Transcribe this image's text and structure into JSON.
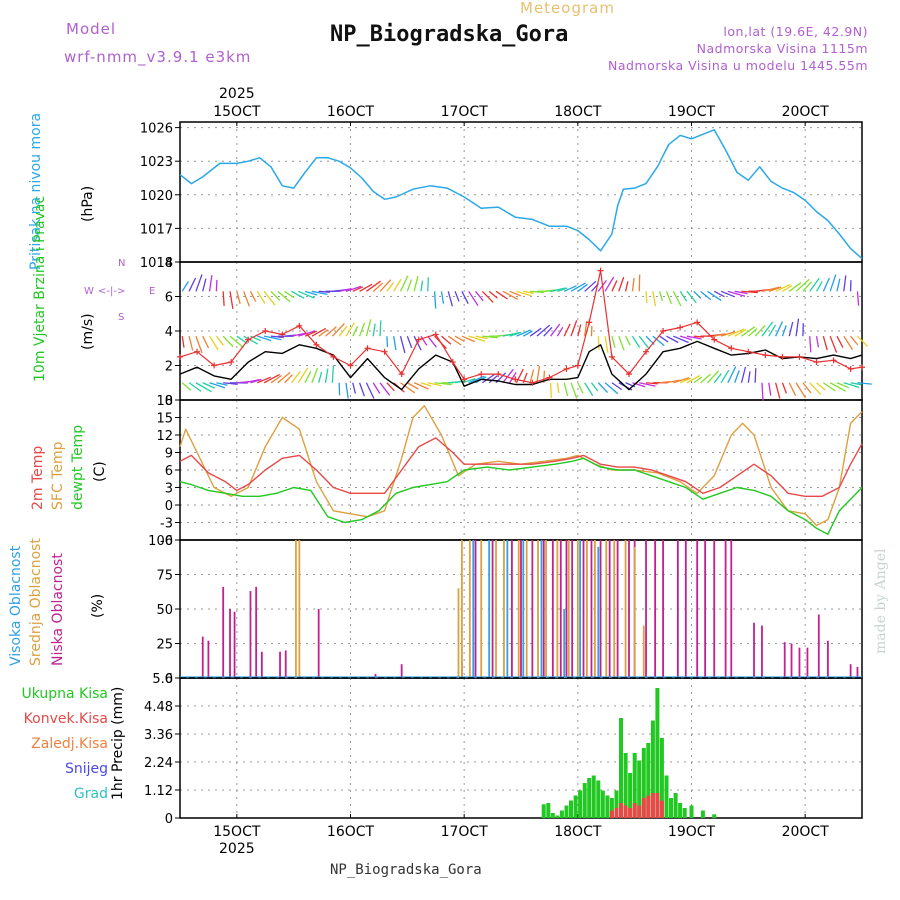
{
  "header": {
    "model_label": "Model",
    "model_name": "wrf-nmm_v3.9.1 e3km",
    "meteogram_label": "Meteogram",
    "station_title": "NP_Biogradska_Gora",
    "lonlat": "lon,lat (19.6E, 42.9N)",
    "altitude": "Nadmorska Visina 1115m",
    "model_altitude": "Nadmorska Visina u modelu 1445.55m",
    "footer_title": "NP_Biogradska_Gora",
    "watermark": "made by Angel"
  },
  "colors": {
    "pressure": "#2aa8e8",
    "wind_speed": "#000000",
    "gust": "#e83030",
    "temp2m": "#e84848",
    "sfc_temp": "#dca040",
    "dewpoint": "#22c822",
    "cloud_high": "#30a0e8",
    "cloud_mid": "#dca040",
    "cloud_low": "#c02090",
    "precip_total": "#22c822",
    "precip_conv": "#e84848"
  },
  "chart_data": [
    {
      "type": "line",
      "panel": "pressure",
      "title": "Pritisak na nivou mora",
      "ylabel": "Pritisak na nivou mora",
      "units": "(hPa)",
      "top_axis_year": "2025",
      "x_tick_labels": [
        "15OCT",
        "16OCT",
        "17OCT",
        "18OCT",
        "19OCT",
        "20OCT"
      ],
      "x_range_days": [
        14.5,
        20.5
      ],
      "ylim": [
        1014,
        1026.5
      ],
      "y_ticks": [
        1014,
        1017,
        1020,
        1023,
        1026
      ],
      "series": [
        {
          "name": "MSLP",
          "x": [
            14.5,
            14.6,
            14.7,
            14.85,
            15.0,
            15.1,
            15.2,
            15.3,
            15.4,
            15.5,
            15.6,
            15.7,
            15.8,
            15.9,
            16.0,
            16.1,
            16.2,
            16.3,
            16.4,
            16.55,
            16.7,
            16.85,
            17.0,
            17.15,
            17.3,
            17.45,
            17.6,
            17.75,
            17.9,
            18.0,
            18.1,
            18.2,
            18.3,
            18.35,
            18.4,
            18.5,
            18.6,
            18.7,
            18.8,
            18.9,
            19.0,
            19.1,
            19.2,
            19.3,
            19.4,
            19.5,
            19.6,
            19.7,
            19.8,
            19.9,
            20.0,
            20.1,
            20.2,
            20.3,
            20.4,
            20.5
          ],
          "values": [
            1021.8,
            1021.0,
            1021.6,
            1022.8,
            1022.8,
            1023.0,
            1023.3,
            1022.5,
            1020.8,
            1020.6,
            1022.0,
            1023.3,
            1023.3,
            1023.0,
            1022.4,
            1021.5,
            1020.3,
            1019.6,
            1019.8,
            1020.5,
            1020.8,
            1020.6,
            1019.8,
            1018.8,
            1018.9,
            1018.0,
            1017.8,
            1017.2,
            1017.2,
            1016.8,
            1016.0,
            1015.0,
            1016.5,
            1019.0,
            1020.5,
            1020.6,
            1021.0,
            1022.5,
            1024.5,
            1025.3,
            1025.0,
            1025.4,
            1025.8,
            1024.0,
            1022.0,
            1021.3,
            1022.5,
            1021.2,
            1020.6,
            1020.2,
            1019.5,
            1018.5,
            1017.7,
            1016.5,
            1015.2,
            1014.3
          ]
        }
      ]
    },
    {
      "type": "line",
      "panel": "wind",
      "ylabel": "10m Vjetar Brzina i Pravac",
      "units": "(m/s)",
      "compass": {
        "w": "W",
        "e": "E",
        "n": "N",
        "s": "S"
      },
      "ylim": [
        0,
        8
      ],
      "y_ticks": [
        0,
        2,
        4,
        6,
        8
      ],
      "series": [
        {
          "name": "wind speed",
          "x": [
            14.5,
            14.65,
            14.8,
            14.95,
            15.1,
            15.25,
            15.4,
            15.55,
            15.7,
            15.85,
            16.0,
            16.15,
            16.3,
            16.45,
            16.6,
            16.75,
            16.9,
            17.0,
            17.15,
            17.3,
            17.45,
            17.6,
            17.75,
            17.9,
            18.0,
            18.1,
            18.2,
            18.3,
            18.45,
            18.6,
            18.75,
            18.9,
            19.05,
            19.2,
            19.35,
            19.5,
            19.65,
            19.8,
            19.95,
            20.1,
            20.25,
            20.4,
            20.5
          ],
          "values": [
            1.5,
            1.9,
            1.4,
            1.2,
            2.2,
            2.8,
            2.7,
            3.2,
            3.0,
            2.6,
            1.3,
            2.4,
            1.3,
            0.6,
            1.8,
            2.6,
            2.2,
            0.8,
            1.2,
            1.1,
            0.9,
            0.9,
            1.2,
            1.2,
            1.3,
            2.8,
            3.2,
            1.5,
            0.6,
            1.5,
            2.8,
            3.0,
            3.4,
            3.0,
            2.6,
            2.7,
            2.9,
            2.4,
            2.5,
            2.4,
            2.6,
            2.4,
            2.6
          ]
        },
        {
          "name": "gust",
          "x": [
            14.5,
            14.65,
            14.8,
            14.95,
            15.1,
            15.25,
            15.4,
            15.55,
            15.7,
            15.85,
            16.0,
            16.15,
            16.3,
            16.45,
            16.6,
            16.75,
            16.9,
            17.0,
            17.15,
            17.3,
            17.45,
            17.6,
            17.75,
            17.9,
            18.0,
            18.1,
            18.2,
            18.3,
            18.45,
            18.6,
            18.75,
            18.9,
            19.05,
            19.2,
            19.35,
            19.5,
            19.65,
            19.8,
            19.95,
            20.1,
            20.25,
            20.4,
            20.5
          ],
          "values": [
            2.5,
            2.8,
            2.0,
            2.2,
            3.5,
            4.0,
            3.8,
            4.3,
            3.2,
            2.5,
            2.0,
            3.0,
            2.8,
            1.5,
            3.5,
            3.8,
            2.2,
            1.2,
            1.5,
            1.5,
            1.2,
            1.0,
            1.3,
            1.8,
            2.0,
            4.5,
            7.5,
            2.5,
            1.5,
            2.8,
            4.0,
            4.2,
            4.5,
            3.5,
            3.0,
            2.8,
            2.6,
            2.5,
            2.5,
            2.2,
            2.3,
            1.8,
            1.9
          ]
        }
      ]
    },
    {
      "type": "line",
      "panel": "temperature",
      "legend": [
        "2m Temp",
        "SFC Temp",
        "dewpt Temp"
      ],
      "units": "(C)",
      "ylim": [
        -6,
        18
      ],
      "y_ticks": [
        -6,
        -3,
        0,
        3,
        6,
        9,
        12,
        15,
        18
      ],
      "series": [
        {
          "name": "2m Temp",
          "x": [
            14.5,
            14.6,
            14.75,
            14.9,
            15.0,
            15.1,
            15.25,
            15.4,
            15.55,
            15.7,
            15.85,
            16.0,
            16.15,
            16.3,
            16.45,
            16.6,
            16.75,
            16.9,
            17.0,
            17.2,
            17.4,
            17.6,
            17.8,
            17.95,
            18.05,
            18.2,
            18.35,
            18.5,
            18.65,
            18.8,
            18.95,
            19.1,
            19.25,
            19.4,
            19.55,
            19.7,
            19.85,
            20.0,
            20.15,
            20.3,
            20.4,
            20.5
          ],
          "values": [
            7.5,
            8.5,
            5.5,
            4.0,
            2.5,
            3.5,
            6.0,
            8.0,
            8.5,
            6.0,
            3.0,
            2.0,
            2.0,
            2.0,
            6.0,
            10.0,
            11.5,
            9.0,
            7.0,
            7.0,
            7.0,
            7.0,
            7.5,
            8.0,
            8.5,
            7.0,
            6.5,
            6.5,
            6.0,
            5.0,
            4.0,
            2.0,
            3.0,
            5.0,
            7.0,
            5.0,
            2.0,
            1.5,
            1.5,
            3.0,
            7.0,
            10.5
          ]
        },
        {
          "name": "SFC Temp",
          "x": [
            14.5,
            14.55,
            14.65,
            14.8,
            14.95,
            15.1,
            15.25,
            15.4,
            15.55,
            15.7,
            15.85,
            16.0,
            16.15,
            16.3,
            16.45,
            16.55,
            16.65,
            16.8,
            16.95,
            17.1,
            17.3,
            17.5,
            17.7,
            17.9,
            18.0,
            18.15,
            18.3,
            18.5,
            18.7,
            18.9,
            19.05,
            19.2,
            19.35,
            19.45,
            19.55,
            19.7,
            19.85,
            20.0,
            20.1,
            20.2,
            20.3,
            20.4,
            20.5
          ],
          "values": [
            10.0,
            13.0,
            9.0,
            3.0,
            1.5,
            3.0,
            10.0,
            15.0,
            13.0,
            4.0,
            -1.0,
            -1.5,
            -2.0,
            -1.0,
            8.0,
            15.0,
            17.0,
            12.0,
            5.0,
            7.0,
            7.5,
            7.0,
            7.5,
            8.0,
            8.5,
            7.0,
            6.0,
            6.0,
            5.5,
            4.0,
            2.0,
            5.0,
            12.0,
            14.0,
            12.0,
            3.0,
            -1.0,
            -1.5,
            -3.5,
            -2.5,
            3.0,
            14.0,
            16.0
          ]
        },
        {
          "name": "dewpt Temp",
          "x": [
            14.5,
            14.6,
            14.75,
            14.9,
            15.05,
            15.2,
            15.35,
            15.5,
            15.65,
            15.8,
            15.95,
            16.1,
            16.25,
            16.4,
            16.55,
            16.7,
            16.85,
            17.0,
            17.2,
            17.4,
            17.6,
            17.8,
            17.95,
            18.05,
            18.2,
            18.35,
            18.5,
            18.65,
            18.8,
            18.95,
            19.1,
            19.25,
            19.4,
            19.55,
            19.7,
            19.85,
            20.0,
            20.1,
            20.2,
            20.3,
            20.4,
            20.5
          ],
          "values": [
            4.0,
            3.5,
            2.5,
            2.0,
            1.5,
            1.5,
            2.0,
            3.0,
            2.5,
            -2.0,
            -3.0,
            -2.5,
            -1.0,
            2.0,
            3.0,
            3.5,
            4.0,
            6.0,
            6.5,
            6.0,
            6.5,
            7.0,
            7.5,
            8.0,
            6.5,
            6.0,
            6.0,
            5.0,
            4.0,
            3.0,
            1.0,
            2.0,
            3.0,
            2.5,
            1.5,
            -1.0,
            -2.5,
            -4.0,
            -5.0,
            -1.0,
            1.0,
            3.0
          ]
        }
      ]
    },
    {
      "type": "bar",
      "panel": "clouds",
      "legend": [
        "Visoka Oblacnost",
        "Srednja Oblacnost",
        "Niska Oblacnost"
      ],
      "units": "(%)",
      "ylim": [
        0,
        100
      ],
      "y_ticks": [
        0,
        25,
        50,
        75,
        100
      ],
      "series": [
        {
          "name": "Niska Oblacnost",
          "x": [
            14.7,
            14.75,
            14.88,
            14.94,
            14.98,
            15.12,
            15.17,
            15.22,
            15.38,
            15.43,
            15.72,
            16.22,
            16.45,
            16.98,
            17.1,
            17.25,
            17.42,
            17.5,
            17.6,
            17.7,
            17.78,
            17.85,
            17.9,
            17.95,
            18.05,
            18.12,
            18.2,
            18.28,
            18.35,
            18.45,
            18.5,
            18.6,
            18.68,
            18.75,
            18.88,
            18.95,
            19.05,
            19.12,
            19.2,
            19.3,
            19.35,
            19.55,
            19.62,
            19.82,
            19.88,
            19.95,
            20.02,
            20.12,
            20.2,
            20.4,
            20.46
          ],
          "values": [
            30,
            27,
            66,
            50,
            48,
            63,
            66,
            19,
            19,
            20,
            50,
            3,
            10,
            12,
            100,
            100,
            100,
            100,
            100,
            100,
            100,
            100,
            100,
            100,
            100,
            100,
            100,
            100,
            100,
            100,
            100,
            100,
            100,
            100,
            100,
            100,
            100,
            100,
            100,
            100,
            100,
            40,
            38,
            26,
            25,
            22,
            22,
            46,
            27,
            10,
            8
          ]
        },
        {
          "name": "Srednja Oblacnost",
          "x": [
            15.52,
            15.55,
            16.95,
            16.98,
            17.05,
            17.15,
            17.28,
            17.35,
            17.48,
            17.55,
            17.65,
            17.72,
            17.82,
            17.92,
            18.0,
            18.08,
            18.15,
            18.25,
            18.32,
            18.42,
            18.5,
            18.58
          ],
          "values": [
            100,
            100,
            65,
            100,
            100,
            100,
            100,
            100,
            100,
            100,
            100,
            100,
            100,
            100,
            100,
            100,
            100,
            100,
            100,
            100,
            95,
            38
          ]
        },
        {
          "name": "Visoka Oblacnost",
          "x": [
            17.08,
            17.22,
            17.38,
            17.52,
            17.68,
            17.88,
            18.02,
            18.18
          ],
          "values": [
            100,
            100,
            100,
            100,
            100,
            50,
            100,
            95
          ]
        }
      ]
    },
    {
      "type": "bar",
      "panel": "precipitation",
      "legend": [
        "Ukupna Kisa",
        "Konvek.Kisa",
        "Zaledj.Kisa",
        "Snijeg",
        "Grad"
      ],
      "ylabel": "1hr Precip (mm)",
      "bottom_axis_year": "2025",
      "ylim": [
        0,
        5.6
      ],
      "y_ticks": [
        0,
        1.12,
        2.24,
        3.36,
        4.48,
        5.6
      ],
      "x_tick_labels": [
        "15OCT",
        "16OCT",
        "17OCT",
        "18OCT",
        "19OCT",
        "20OCT"
      ],
      "series": [
        {
          "name": "Ukupna Kisa",
          "x": [
            17.7,
            17.74,
            17.78,
            17.82,
            17.86,
            17.9,
            17.94,
            17.98,
            18.02,
            18.06,
            18.1,
            18.14,
            18.18,
            18.22,
            18.26,
            18.3,
            18.34,
            18.38,
            18.42,
            18.46,
            18.5,
            18.54,
            18.58,
            18.62,
            18.66,
            18.7,
            18.74,
            18.78,
            18.82,
            18.86,
            18.9,
            18.94,
            19.0,
            19.1,
            19.2
          ],
          "values": [
            0.55,
            0.6,
            0.2,
            0.1,
            0.3,
            0.5,
            0.7,
            0.9,
            1.1,
            1.4,
            1.6,
            1.7,
            1.5,
            1.1,
            0.9,
            0.8,
            1.1,
            4.0,
            2.6,
            1.8,
            2.6,
            2.3,
            2.8,
            3.0,
            3.9,
            5.2,
            3.2,
            1.7,
            0.8,
            1.0,
            0.6,
            0.4,
            0.5,
            0.3,
            0.15
          ]
        },
        {
          "name": "Konvek.Kisa",
          "x": [
            18.3,
            18.34,
            18.38,
            18.42,
            18.46,
            18.5,
            18.54,
            18.58,
            18.62,
            18.66,
            18.7,
            18.74
          ],
          "values": [
            0.3,
            0.4,
            0.6,
            0.5,
            0.4,
            0.6,
            0.5,
            0.8,
            0.9,
            1.0,
            1.0,
            0.7
          ]
        }
      ]
    }
  ]
}
